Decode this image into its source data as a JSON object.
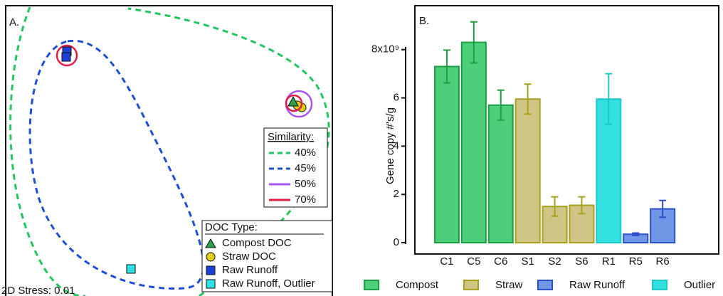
{
  "chart_data": [
    {
      "type": "nmds",
      "panel_label": "A.",
      "stress": "2D Stress: 0.01",
      "similarity_legend": {
        "title": "Similarity:",
        "entries": [
          "40%",
          "45%",
          "50%",
          "70%"
        ],
        "colors": [
          "#22c55e",
          "#1d4ed8",
          "#a855f7",
          "#e11d48"
        ]
      },
      "doc_legend": {
        "title": "DOC Type:",
        "entries": [
          "Compost DOC",
          "Straw DOC",
          "Raw Runoff",
          "Raw Runoff, Outlier"
        ],
        "colors": [
          "#2e9e4a",
          "#e3cc1a",
          "#1d3fd8",
          "#2fe0e6"
        ]
      }
    },
    {
      "type": "bar",
      "panel_label": "B.",
      "y_label": "Gene copy #'s/g",
      "categories": [
        "C1",
        "C5",
        "C6",
        "S1",
        "S2",
        "S6",
        "R1",
        "R5",
        "R6"
      ],
      "series": [
        {
          "name": "Compost",
          "color": "#4ccf7a",
          "edge": "#1e9e40",
          "values": [
            7.3,
            8.3,
            5.7,
            null,
            null,
            null,
            null,
            null,
            null
          ],
          "errors": [
            0.68,
            0.85,
            0.62,
            null,
            null,
            null,
            null,
            null,
            null
          ]
        },
        {
          "name": "Straw",
          "color": "#cfc685",
          "edge": "#a9a020",
          "values": [
            null,
            null,
            null,
            5.95,
            1.5,
            1.55,
            null,
            null,
            null
          ],
          "errors": [
            null,
            null,
            null,
            0.62,
            0.4,
            0.35,
            null,
            null,
            null
          ]
        },
        {
          "name": "Raw Runoff",
          "color": "#7097e6",
          "edge": "#2b50c9",
          "values": [
            null,
            null,
            null,
            null,
            null,
            null,
            null,
            0.35,
            1.4
          ],
          "errors": [
            null,
            null,
            null,
            null,
            null,
            null,
            null,
            0.05,
            0.35
          ]
        },
        {
          "name": "Outlier",
          "color": "#33e0e0",
          "edge": "#1fc8c8",
          "values": [
            null,
            null,
            null,
            null,
            null,
            null,
            5.95,
            null,
            null
          ],
          "errors": [
            null,
            null,
            null,
            null,
            null,
            null,
            1.05,
            null,
            null
          ]
        }
      ],
      "ylim": [
        -0.47,
        9.82
      ],
      "yticks": [
        0,
        2,
        4,
        6,
        {
          "value": 8,
          "label": "8x10⁹"
        }
      ]
    }
  ]
}
